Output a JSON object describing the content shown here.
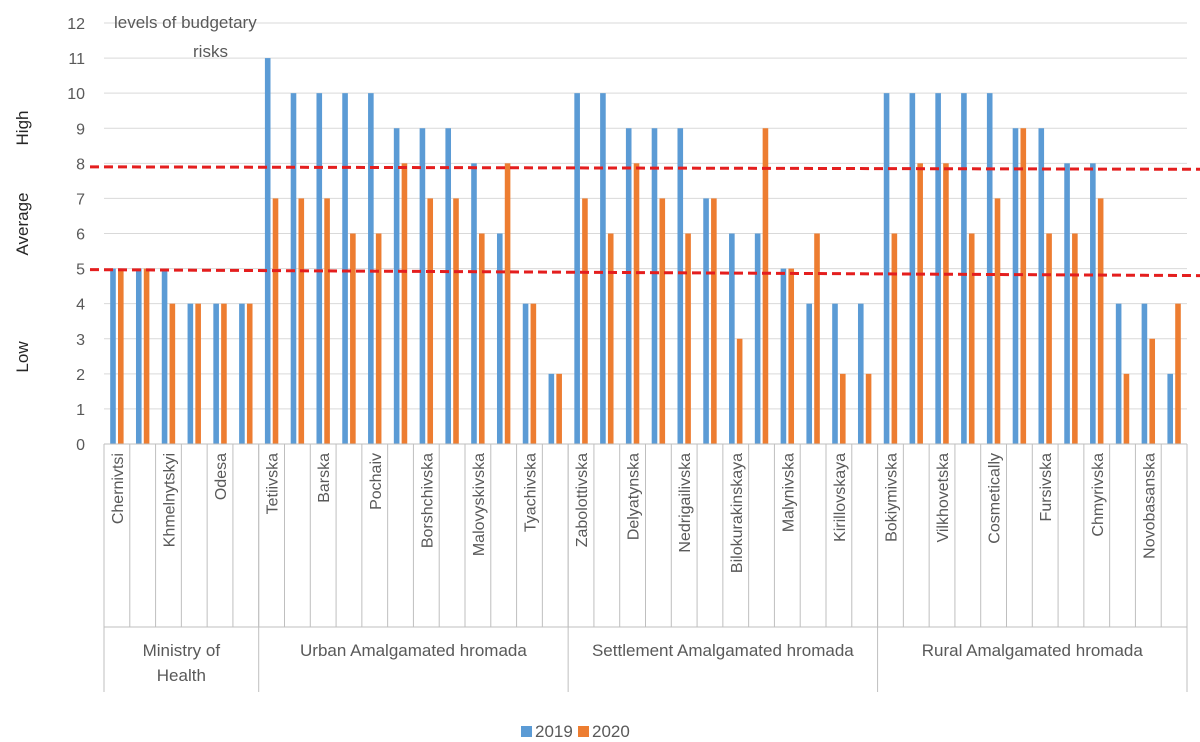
{
  "chart_data": {
    "type": "bar",
    "title": "",
    "annotation": "levels of budgetary risks",
    "ylim": [
      0,
      12
    ],
    "yticks": [
      "0",
      "1",
      "2",
      "3",
      "4",
      "5",
      "6",
      "7",
      "8",
      "9",
      "10",
      "11",
      "12"
    ],
    "risk_bands": [
      "High",
      "Average",
      "Low"
    ],
    "thresholds": [
      5,
      8
    ],
    "groups": [
      {
        "label": "Ministry of Health",
        "size": 6
      },
      {
        "label": "Urban Amalgamated hromada",
        "size": 12
      },
      {
        "label": "Settlement Amalgamated hromada",
        "size": 12
      },
      {
        "label": "Rural Amalgamated hromada",
        "size": 12
      }
    ],
    "categories": [
      "Chernivtsi",
      "",
      "Khmelnytskyi",
      "",
      "Odesa",
      "",
      "Tetiivska",
      "",
      "Barska",
      "",
      "Pochaiv",
      "",
      "Borshchivska",
      "",
      "Malovyskivska",
      "",
      "Tyachivska",
      "",
      "Zabolottivska",
      "",
      "Delyatynska",
      "",
      "Nedrigailivska",
      "",
      "Bilokurakinskaya",
      "",
      "Malynivska",
      "",
      "Kirillovskaya",
      "",
      "Bokiymivska",
      "",
      "Vilkhovetska",
      "",
      "Cosmetically",
      "",
      "Fursivska",
      "",
      "Chmyrivska",
      "",
      "Novobasanska",
      ""
    ],
    "series": [
      {
        "name": "2019",
        "color": "#5B9BD5",
        "values": [
          5,
          5,
          5,
          4,
          4,
          4,
          11,
          10,
          10,
          10,
          10,
          9,
          9,
          9,
          8,
          6,
          4,
          2,
          10,
          10,
          9,
          9,
          9,
          7,
          6,
          6,
          5,
          4,
          4,
          4,
          10,
          10,
          10,
          10,
          10,
          9,
          9,
          8,
          8,
          4,
          4,
          2
        ]
      },
      {
        "name": "2020",
        "color": "#ED7D31",
        "values": [
          5,
          5,
          4,
          4,
          4,
          4,
          7,
          7,
          7,
          6,
          6,
          8,
          7,
          7,
          6,
          8,
          4,
          2,
          7,
          6,
          8,
          7,
          6,
          7,
          3,
          9,
          5,
          6,
          2,
          2,
          6,
          8,
          8,
          6,
          7,
          9,
          6,
          6,
          7,
          2,
          3,
          4
        ]
      }
    ],
    "threshold_color": "#E41E1E"
  }
}
